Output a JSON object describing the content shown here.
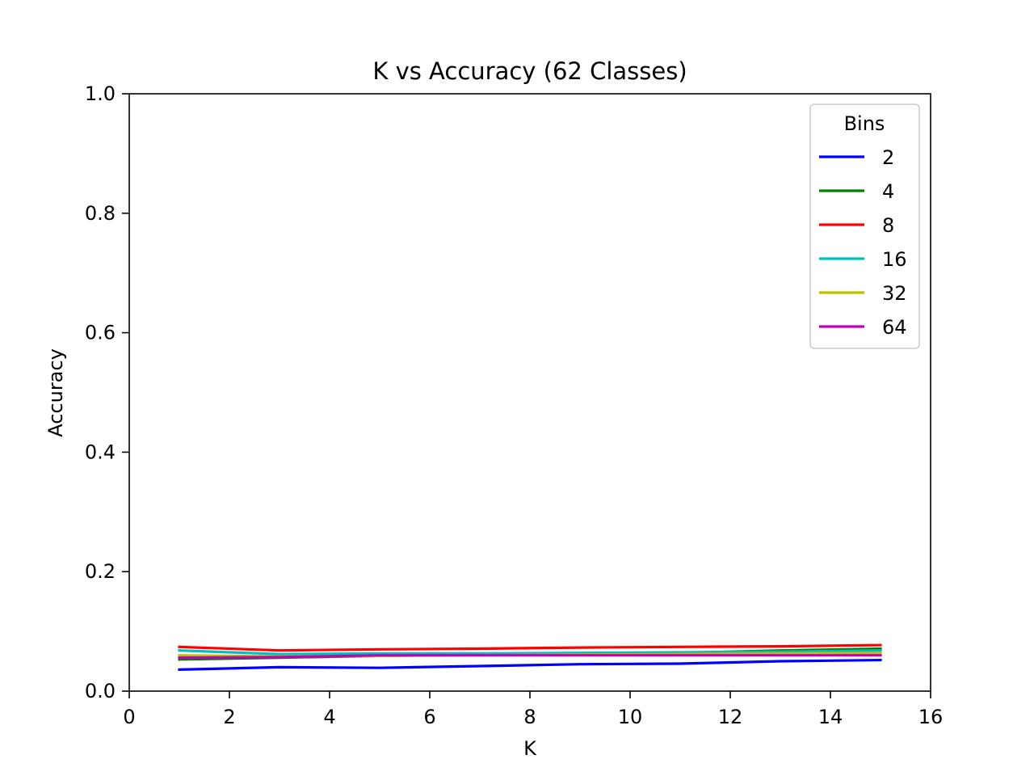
{
  "chart_data": {
    "type": "line",
    "title": "K vs Accuracy (62 Classes)",
    "xlabel": "K",
    "ylabel": "Accuracy",
    "xlim": [
      0,
      16
    ],
    "ylim": [
      0,
      1
    ],
    "xticks": [
      0,
      2,
      4,
      6,
      8,
      10,
      12,
      14,
      16
    ],
    "yticks": [
      0.0,
      0.2,
      0.4,
      0.6,
      0.8,
      1.0
    ],
    "xtick_labels": [
      "0",
      "2",
      "4",
      "6",
      "8",
      "10",
      "12",
      "14",
      "16"
    ],
    "ytick_labels": [
      "0.0",
      "0.2",
      "0.4",
      "0.6",
      "0.8",
      "1.0"
    ],
    "grid": false,
    "legend": {
      "title": "Bins",
      "position": "top-right"
    },
    "x": [
      1,
      3,
      5,
      7,
      9,
      11,
      13,
      15
    ],
    "series": [
      {
        "name": "2",
        "color": "#0000ff",
        "values": [
          0.036,
          0.04,
          0.039,
          0.042,
          0.045,
          0.046,
          0.05,
          0.052
        ]
      },
      {
        "name": "4",
        "color": "#008000",
        "values": [
          0.053,
          0.056,
          0.059,
          0.061,
          0.063,
          0.064,
          0.068,
          0.071
        ]
      },
      {
        "name": "8",
        "color": "#ff0000",
        "values": [
          0.074,
          0.068,
          0.07,
          0.071,
          0.073,
          0.074,
          0.075,
          0.077
        ]
      },
      {
        "name": "16",
        "color": "#00bfbf",
        "values": [
          0.068,
          0.062,
          0.063,
          0.063,
          0.064,
          0.065,
          0.066,
          0.068
        ]
      },
      {
        "name": "32",
        "color": "#bfbf00",
        "values": [
          0.06,
          0.058,
          0.059,
          0.06,
          0.061,
          0.062,
          0.063,
          0.064
        ]
      },
      {
        "name": "64",
        "color": "#bf00bf",
        "values": [
          0.056,
          0.057,
          0.06,
          0.06,
          0.06,
          0.06,
          0.06,
          0.06
        ]
      }
    ]
  }
}
